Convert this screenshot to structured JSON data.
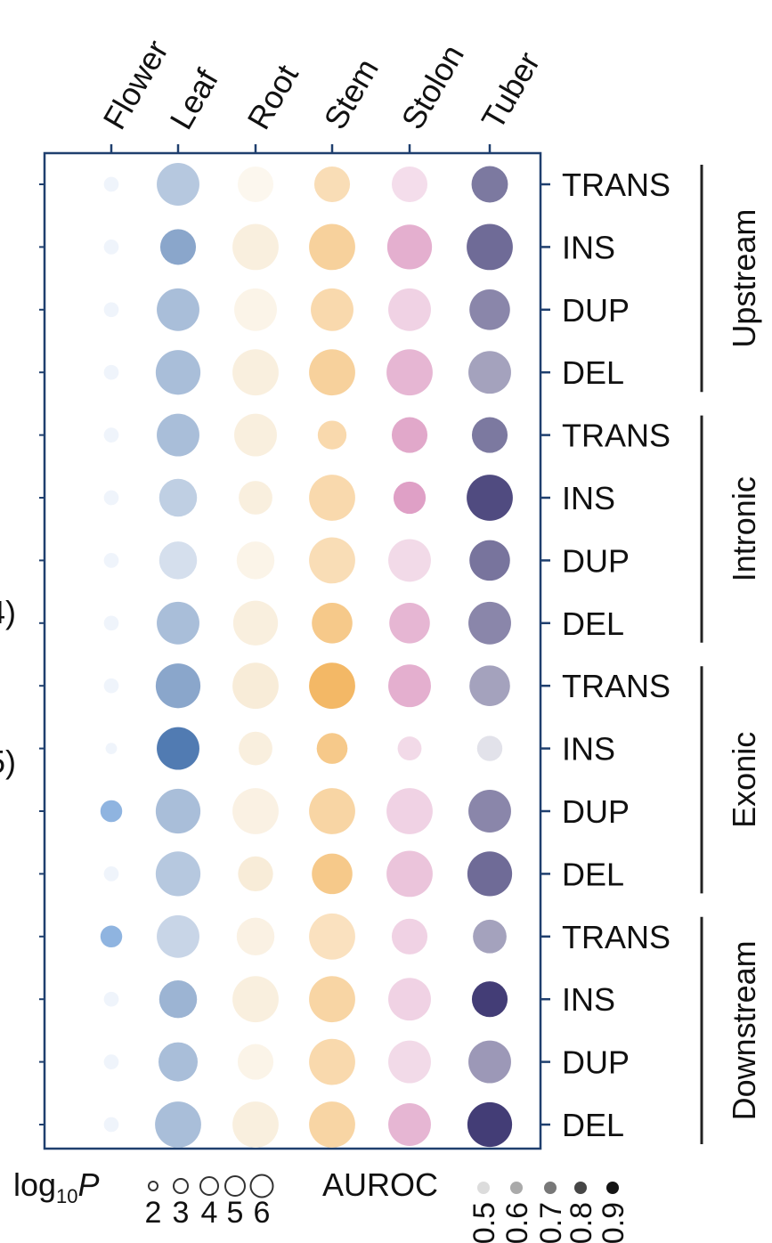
{
  "chart_data": {
    "type": "scatter",
    "x_categories": [
      "Flower",
      "Leaf",
      "Root",
      "Stem",
      "Stolon",
      "Tuber"
    ],
    "row_labels": [
      "TRANS",
      "INS",
      "DUP",
      "DEL",
      "TRANS",
      "INS",
      "DUP",
      "DEL",
      "TRANS",
      "INS",
      "DUP",
      "DEL",
      "TRANS",
      "INS",
      "DUP",
      "DEL"
    ],
    "groups": [
      {
        "label": "Upstream",
        "rows": [
          0,
          3
        ]
      },
      {
        "label": "Intronic",
        "rows": [
          4,
          7
        ]
      },
      {
        "label": "Exonic",
        "rows": [
          8,
          11
        ]
      },
      {
        "label": "Downstream",
        "rows": [
          12,
          15
        ]
      }
    ],
    "series_colors": {
      "Flower": "#8fb4e0",
      "Leaf": "#3b6aa8",
      "Root": "#e8c588",
      "Stem": "#f0a43a",
      "Stolon": "#c9609f",
      "Tuber": "#3a3470"
    },
    "neg_log10_p": [
      [
        1.5,
        5.5,
        4.5,
        4.5,
        4.5,
        4.6
      ],
      [
        1.5,
        4.5,
        6.0,
        6.0,
        5.8,
        6.0
      ],
      [
        1.5,
        5.5,
        5.5,
        5.5,
        5.5,
        5.2
      ],
      [
        1.5,
        5.8,
        6.0,
        6.0,
        6.0,
        5.5
      ],
      [
        1.5,
        5.5,
        5.5,
        3.5,
        4.5,
        4.5
      ],
      [
        1.5,
        4.8,
        4.2,
        6.0,
        4.0,
        6.0
      ],
      [
        1.5,
        4.8,
        4.8,
        6.0,
        5.5,
        5.2
      ],
      [
        1.5,
        5.5,
        5.8,
        5.2,
        5.2,
        5.5
      ],
      [
        1.5,
        5.8,
        6.0,
        6.0,
        5.5,
        5.2
      ],
      [
        1.0,
        5.5,
        4.2,
        3.8,
        2.8,
        3.0
      ],
      [
        2.5,
        5.8,
        6.0,
        6.0,
        6.0,
        5.5
      ],
      [
        1.5,
        5.8,
        4.4,
        5.2,
        6.0,
        5.8
      ],
      [
        2.5,
        5.5,
        4.8,
        6.0,
        4.5,
        4.2
      ],
      [
        1.5,
        4.8,
        6.0,
        6.0,
        5.5,
        4.5
      ],
      [
        1.5,
        5.0,
        4.5,
        6.0,
        5.5,
        5.5
      ],
      [
        1.5,
        6.0,
        6.0,
        6.0,
        5.5,
        5.8
      ]
    ],
    "auroc": [
      [
        0.52,
        0.62,
        0.52,
        0.62,
        0.55,
        0.75
      ],
      [
        0.52,
        0.72,
        0.58,
        0.68,
        0.68,
        0.78
      ],
      [
        0.52,
        0.65,
        0.54,
        0.64,
        0.58,
        0.72
      ],
      [
        0.52,
        0.65,
        0.58,
        0.68,
        0.66,
        0.66
      ],
      [
        0.52,
        0.65,
        0.58,
        0.64,
        0.7,
        0.75
      ],
      [
        0.52,
        0.6,
        0.58,
        0.64,
        0.72,
        0.85
      ],
      [
        0.52,
        0.55,
        0.54,
        0.62,
        0.56,
        0.76
      ],
      [
        0.52,
        0.65,
        0.58,
        0.72,
        0.66,
        0.72
      ],
      [
        0.52,
        0.72,
        0.6,
        0.8,
        0.68,
        0.66
      ],
      [
        0.52,
        0.85,
        0.58,
        0.72,
        0.56,
        0.52
      ],
      [
        0.9,
        0.65,
        0.56,
        0.66,
        0.58,
        0.72
      ],
      [
        0.52,
        0.62,
        0.6,
        0.72,
        0.62,
        0.78
      ],
      [
        0.95,
        0.58,
        0.56,
        0.6,
        0.58,
        0.66
      ],
      [
        0.52,
        0.68,
        0.58,
        0.66,
        0.58,
        0.88
      ],
      [
        0.52,
        0.65,
        0.54,
        0.64,
        0.56,
        0.68
      ],
      [
        0.52,
        0.65,
        0.58,
        0.66,
        0.66,
        0.88
      ]
    ],
    "size_legend": {
      "title_base": "log",
      "title_sub": "10",
      "title_var": "P",
      "values": [
        2,
        3,
        4,
        5,
        6
      ]
    },
    "color_legend": {
      "title": "AUROC",
      "values": [
        0.5,
        0.6,
        0.7,
        0.8,
        0.9
      ],
      "tick_labels": [
        "0.5",
        "0.6",
        "0.7",
        "0.8",
        "0.9"
      ]
    },
    "left_fragments": [
      "4)",
      "5)"
    ]
  }
}
